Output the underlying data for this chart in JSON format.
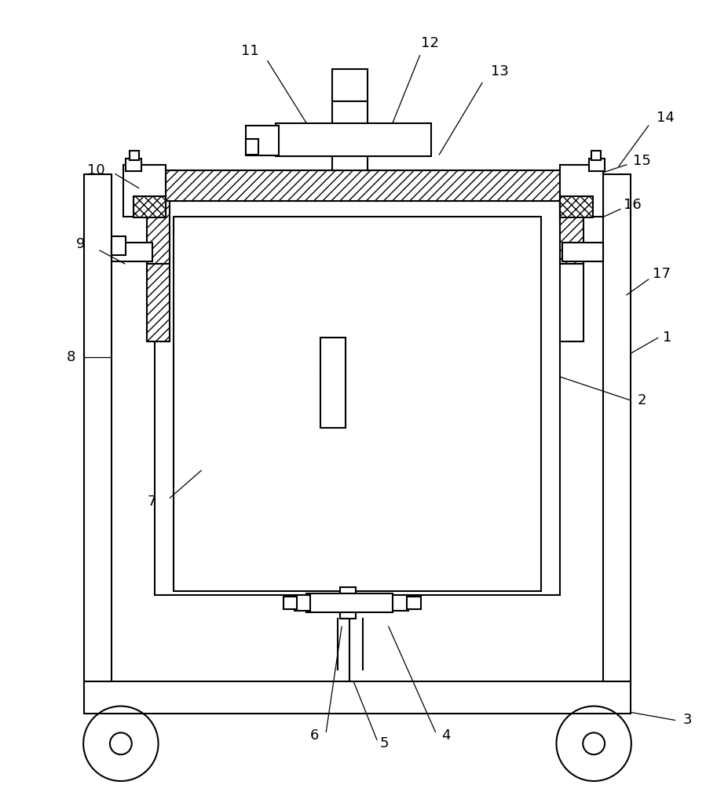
{
  "bg_color": "#ffffff",
  "line_color": "#000000",
  "fig_width": 9.13,
  "fig_height": 10.0,
  "lw": 1.5
}
